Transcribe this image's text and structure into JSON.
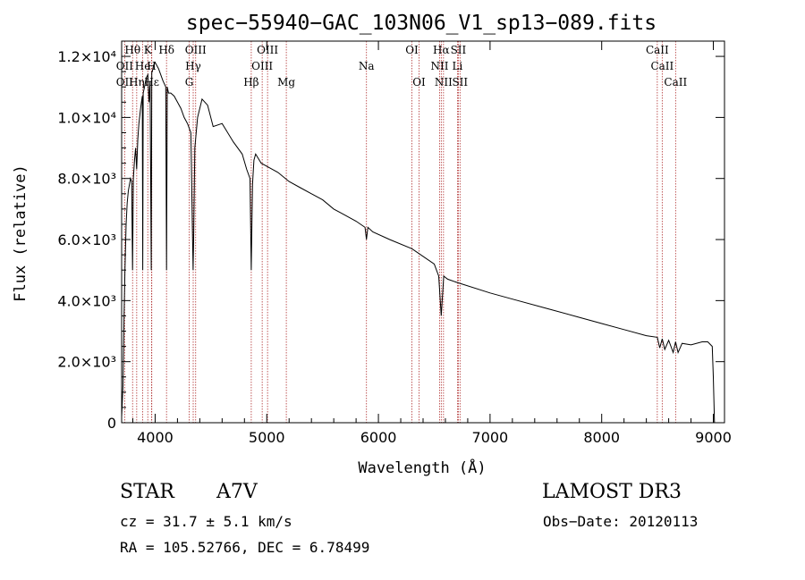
{
  "chart_data": {
    "type": "line",
    "title": "spec−55940−GAC_103N06_V1_sp13−089.fits",
    "xlabel": "Wavelength (Å)",
    "ylabel": "Flux (relative)",
    "xlim": [
      3700,
      9100
    ],
    "ylim": [
      0,
      12500
    ],
    "xticks": [
      4000,
      5000,
      6000,
      7000,
      8000,
      9000
    ],
    "xtick_labels": [
      "4000",
      "5000",
      "6000",
      "7000",
      "8000",
      "9000"
    ],
    "yticks": [
      0,
      2000,
      4000,
      6000,
      8000,
      10000,
      12000
    ],
    "ytick_labels": [
      "0",
      "2.0×10³",
      "4.0×10³",
      "6.0×10³",
      "8.0×10³",
      "1.0×10⁴",
      "1.2×10⁴"
    ],
    "series": [
      {
        "name": "spectrum",
        "x": [
          3700,
          3712,
          3722,
          3730,
          3740,
          3750,
          3760,
          3770,
          3780,
          3790,
          3798,
          3805,
          3815,
          3825,
          3835,
          3845,
          3855,
          3870,
          3885,
          3889,
          3893,
          3905,
          3920,
          3935,
          3945,
          3955,
          3965,
          3970,
          3975,
          3985,
          4000,
          4015,
          4030,
          4050,
          4070,
          4095,
          4102,
          4109,
          4120,
          4140,
          4170,
          4200,
          4230,
          4260,
          4290,
          4320,
          4335,
          4340,
          4345,
          4355,
          4380,
          4420,
          4470,
          4520,
          4600,
          4700,
          4780,
          4820,
          4850,
          4861,
          4872,
          4885,
          4900,
          4950,
          5000,
          5100,
          5200,
          5300,
          5400,
          5500,
          5600,
          5700,
          5800,
          5880,
          5893,
          5906,
          5950,
          6100,
          6300,
          6500,
          6540,
          6563,
          6585,
          6620,
          6700,
          7000,
          7200,
          7500,
          7800,
          8000,
          8200,
          8400,
          8498,
          8520,
          8542,
          8565,
          8600,
          8640,
          8662,
          8684,
          8720,
          8800,
          8900,
          8950,
          8990,
          9000,
          9010
        ],
        "values": [
          200,
          1200,
          3500,
          5000,
          6500,
          7200,
          7600,
          7800,
          8000,
          7900,
          5000,
          8000,
          8600,
          9000,
          8300,
          9300,
          9800,
          10300,
          10700,
          5000,
          10800,
          11000,
          11300,
          11400,
          10500,
          11200,
          5000,
          11500,
          11500,
          11700,
          11800,
          11700,
          11600,
          11400,
          11200,
          11000,
          5000,
          11000,
          10800,
          10800,
          10700,
          10500,
          10300,
          10000,
          9800,
          9500,
          6000,
          5000,
          6000,
          9000,
          10000,
          10600,
          10400,
          9700,
          9800,
          9200,
          8800,
          8300,
          8000,
          5000,
          7800,
          8600,
          8800,
          8500,
          8400,
          8200,
          7900,
          7700,
          7500,
          7300,
          7000,
          6800,
          6600,
          6400,
          6000,
          6400,
          6250,
          6000,
          5700,
          5200,
          4800,
          3500,
          4800,
          4700,
          4600,
          4250,
          4050,
          3750,
          3450,
          3250,
          3050,
          2850,
          2800,
          2450,
          2750,
          2400,
          2700,
          2300,
          2650,
          2300,
          2600,
          2550,
          2650,
          2650,
          2500,
          1500,
          0
        ]
      }
    ],
    "lines": [
      {
        "label": "Hθ",
        "x": 3798,
        "row": 0
      },
      {
        "label": "K",
        "x": 3934,
        "row": 0
      },
      {
        "label": "Hδ",
        "x": 4102,
        "row": 0
      },
      {
        "label": "OIII",
        "x": 4363,
        "row": 0
      },
      {
        "label": "OIII",
        "x": 5007,
        "row": 0
      },
      {
        "label": "OI",
        "x": 6300,
        "row": 0
      },
      {
        "label": "Hα",
        "x": 6563,
        "row": 0
      },
      {
        "label": "SII",
        "x": 6716,
        "row": 0
      },
      {
        "label": "CaII",
        "x": 8498,
        "row": 0
      },
      {
        "label": "OII",
        "x": 3727,
        "row": 1
      },
      {
        "label": "He",
        "x": 3889,
        "row": 1
      },
      {
        "label": "H",
        "x": 3968,
        "row": 1
      },
      {
        "label": "Hγ",
        "x": 4341,
        "row": 1
      },
      {
        "label": "OIII",
        "x": 4959,
        "row": 1
      },
      {
        "label": "Na",
        "x": 5893,
        "row": 1
      },
      {
        "label": "NII",
        "x": 6548,
        "row": 1
      },
      {
        "label": "Li",
        "x": 6708,
        "row": 1
      },
      {
        "label": "CaII",
        "x": 8542,
        "row": 1
      },
      {
        "label": "OII",
        "x": 3727,
        "row": 2
      },
      {
        "label": "Hη",
        "x": 3835,
        "row": 2
      },
      {
        "label": "Hε",
        "x": 3970,
        "row": 2
      },
      {
        "label": "G",
        "x": 4305,
        "row": 2
      },
      {
        "label": "Hβ",
        "x": 4861,
        "row": 2
      },
      {
        "label": "Mg",
        "x": 5175,
        "row": 2
      },
      {
        "label": "OI",
        "x": 6364,
        "row": 2
      },
      {
        "label": "NII",
        "x": 6583,
        "row": 2
      },
      {
        "label": "SII",
        "x": 6731,
        "row": 2
      },
      {
        "label": "CaII",
        "x": 8662,
        "row": 2
      }
    ],
    "line_color": "#b03030"
  },
  "info": {
    "object_type": "STAR",
    "subclass": "A7V",
    "survey": "LAMOST DR3",
    "cz": "cz = 31.7 ± 5.1 km/s",
    "obs_date": "Obs−Date: 20120113",
    "coords": "RA = 105.52766, DEC =   6.78499"
  }
}
